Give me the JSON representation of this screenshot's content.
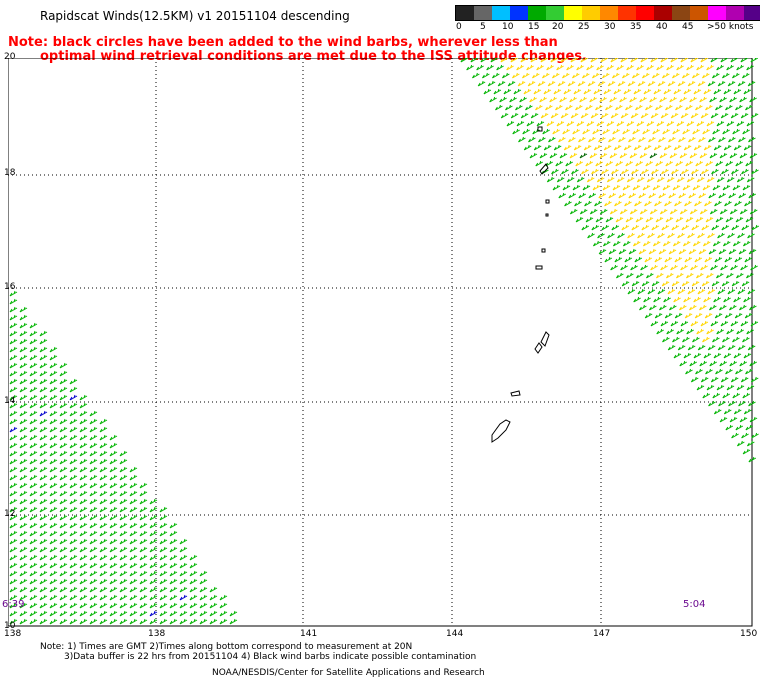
{
  "header": {
    "title": "Rapidscat Winds(12.5KM) v1 20151104 descending",
    "note_line1": "Note: black circles have been added to the wind barbs, wherever less than",
    "note_line2": "optimal wind retrieval conditions are met due to the ISS attitude changes."
  },
  "legend": {
    "labels": [
      "0",
      "5",
      "10",
      "15",
      "20",
      "25",
      "30",
      "35",
      "40",
      "45",
      ">50 knots"
    ],
    "colors": [
      "#222222",
      "#666666",
      "#00bfff",
      "#0033ff",
      "#00aa00",
      "#33cc33",
      "#ffff00",
      "#ffcc00",
      "#ff8800",
      "#ff3300",
      "#ff0000",
      "#aa0000",
      "#8b4513",
      "#cc5500",
      "#ff00ff",
      "#b000b0",
      "#550088",
      "#330066"
    ]
  },
  "axes": {
    "lat_labels": [
      "20",
      "18",
      "16",
      "14",
      "12",
      "10"
    ],
    "lon_labels": [
      "138",
      "138",
      "141",
      "144",
      "147",
      "150"
    ]
  },
  "swath_times": {
    "left": "6:39",
    "right": "5:04"
  },
  "footer": {
    "line1": "Note: 1) Times are GMT 2)Times along bottom correspond to measurement at 20N",
    "line2": "3)Data buffer is 22 hrs from 20151104 4) Black wind barbs indicate possible contamination",
    "credit": "NOAA/NESDIS/Center for Satellite Applications and Research"
  },
  "map_colors": {
    "green": "#00b400",
    "yellow": "#ffd700",
    "blue": "#0000cc",
    "dark_green": "#006600"
  }
}
